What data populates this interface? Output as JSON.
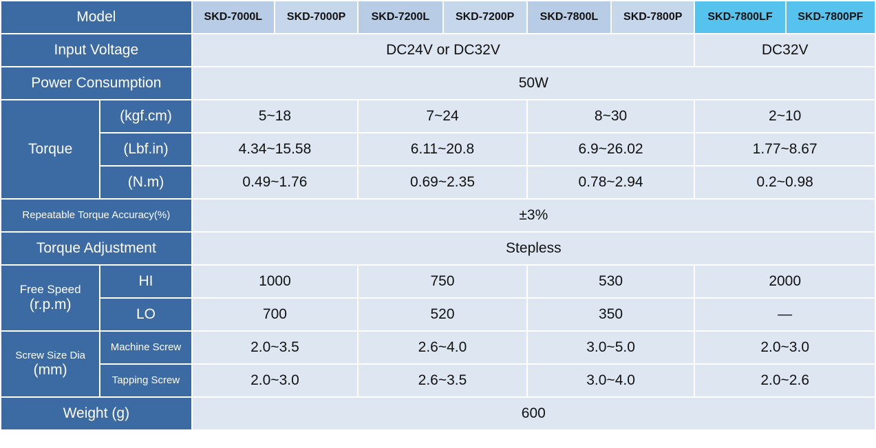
{
  "labels": {
    "model": "Model",
    "input_voltage": "Input Voltage",
    "power_consumption": "Power Consumption",
    "torque": "Torque",
    "torque_kgfcm": "(kgf.cm)",
    "torque_lbfin": "(Lbf.in)",
    "torque_nm": "(N.m)",
    "repeatable_accuracy": "Repeatable Torque Accuracy(%)",
    "torque_adjustment": "Torque Adjustment",
    "free_speed_line1": "Free Speed",
    "free_speed_line2": "(r.p.m)",
    "speed_hi": "HI",
    "speed_lo": "LO",
    "screw_line1": "Screw Size Dia",
    "screw_line2": "(mm)",
    "machine_screw": "Machine Screw",
    "tapping_screw": "Tapping Screw",
    "weight": "Weight (g)"
  },
  "models": [
    "SKD-7000L",
    "SKD-7000P",
    "SKD-7200L",
    "SKD-7200P",
    "SKD-7800L",
    "SKD-7800P",
    "SKD-7800LF",
    "SKD-7800PF"
  ],
  "values": {
    "input_voltage_a": "DC24V or DC32V",
    "input_voltage_b": "DC32V",
    "power_consumption": "50W",
    "torque_kgfcm": [
      "5~18",
      "7~24",
      "8~30",
      "2~10"
    ],
    "torque_lbfin": [
      "4.34~15.58",
      "6.11~20.8",
      "6.9~26.02",
      "1.77~8.67"
    ],
    "torque_nm": [
      "0.49~1.76",
      "0.69~2.35",
      "0.78~2.94",
      "0.2~0.98"
    ],
    "repeatable_accuracy": "±3%",
    "torque_adjustment": "Stepless",
    "speed_hi": [
      "1000",
      "750",
      "530",
      "2000"
    ],
    "speed_lo": [
      "700",
      "520",
      "350",
      "—"
    ],
    "machine_screw": [
      "2.0~3.5",
      "2.6~4.0",
      "3.0~5.0",
      "2.0~3.0"
    ],
    "tapping_screw": [
      "2.0~3.0",
      "2.6~3.5",
      "3.0~4.0",
      "2.0~2.6"
    ],
    "weight": "600"
  },
  "colors": {
    "header_blue": "#3c6aa3",
    "model_light_blue": "#b9cce5",
    "model_cyan": "#55c3ee",
    "value_cell": "#dde6f1"
  }
}
